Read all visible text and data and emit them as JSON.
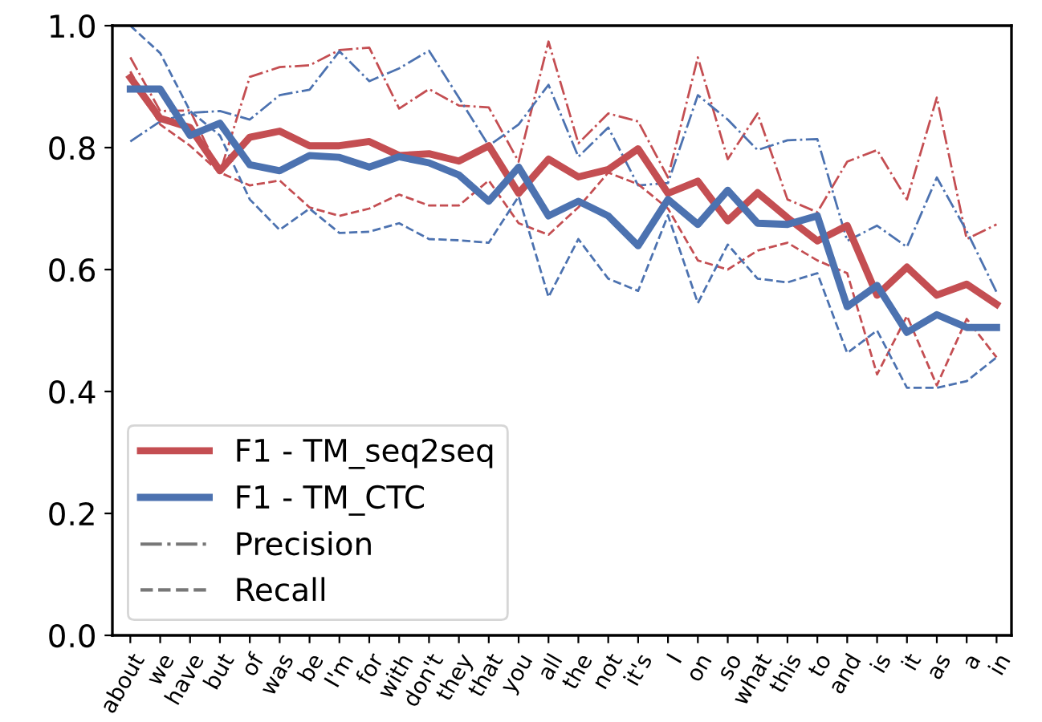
{
  "chart_data": {
    "type": "line",
    "categories": [
      "about",
      "we",
      "have",
      "but",
      "of",
      "was",
      "be",
      "I'm",
      "for",
      "with",
      "don't",
      "they",
      "that",
      "you",
      "all",
      "the",
      "not",
      "it's",
      "I",
      "on",
      "so",
      "what",
      "this",
      "to",
      "and",
      "is",
      "it",
      "as",
      "a",
      "in"
    ],
    "series": [
      {
        "name": "F1 - TM_seq2seq",
        "color": "#c44e52",
        "line_style": "solid",
        "values": [
          0.915,
          0.848,
          0.833,
          0.762,
          0.817,
          0.827,
          0.803,
          0.803,
          0.81,
          0.787,
          0.79,
          0.778,
          0.803,
          0.725,
          0.781,
          0.752,
          0.764,
          0.798,
          0.725,
          0.745,
          0.68,
          0.726,
          0.685,
          0.647,
          0.672,
          0.558,
          0.604,
          0.558,
          0.576,
          0.543
        ]
      },
      {
        "name": "F1 - TM_CTC",
        "color": "#4c72b0",
        "line_style": "solid",
        "values": [
          0.896,
          0.896,
          0.82,
          0.84,
          0.772,
          0.762,
          0.787,
          0.784,
          0.768,
          0.785,
          0.775,
          0.755,
          0.712,
          0.768,
          0.688,
          0.712,
          0.688,
          0.639,
          0.715,
          0.674,
          0.73,
          0.676,
          0.674,
          0.688,
          0.539,
          0.574,
          0.497,
          0.526,
          0.505,
          0.505
        ]
      },
      {
        "color": "#c44e52",
        "line_style": "dashdot",
        "values": [
          0.948,
          0.86,
          0.861,
          0.759,
          0.916,
          0.932,
          0.935,
          0.96,
          0.964,
          0.864,
          0.896,
          0.869,
          0.866,
          0.777,
          0.974,
          0.807,
          0.856,
          0.843,
          0.751,
          0.948,
          0.781,
          0.856,
          0.715,
          0.694,
          0.777,
          0.796,
          0.715,
          0.882,
          0.65,
          0.674
        ]
      },
      {
        "color": "#4c72b0",
        "line_style": "dashdot",
        "values": [
          0.81,
          0.843,
          0.857,
          0.86,
          0.846,
          0.886,
          0.895,
          0.958,
          0.909,
          0.93,
          0.959,
          0.882,
          0.803,
          0.838,
          0.903,
          0.785,
          0.833,
          0.738,
          0.742,
          0.886,
          0.846,
          0.796,
          0.812,
          0.814,
          0.647,
          0.672,
          0.637,
          0.751,
          0.663,
          0.563
        ]
      },
      {
        "color": "#c44e52",
        "line_style": "dashed",
        "values": [
          0.925,
          0.838,
          0.803,
          0.759,
          0.738,
          0.746,
          0.702,
          0.688,
          0.7,
          0.723,
          0.705,
          0.705,
          0.746,
          0.676,
          0.657,
          0.702,
          0.759,
          0.74,
          0.7,
          0.615,
          0.6,
          0.631,
          0.644,
          0.615,
          0.594,
          0.428,
          0.524,
          0.41,
          0.519,
          0.456
        ]
      },
      {
        "color": "#4c72b0",
        "line_style": "dashed",
        "values": [
          1.0,
          0.955,
          0.86,
          0.82,
          0.715,
          0.665,
          0.7,
          0.66,
          0.662,
          0.676,
          0.65,
          0.648,
          0.644,
          0.72,
          0.555,
          0.65,
          0.585,
          0.565,
          0.689,
          0.545,
          0.641,
          0.585,
          0.579,
          0.594,
          0.463,
          0.5,
          0.406,
          0.406,
          0.417,
          0.456
        ]
      }
    ],
    "ylim": [
      0,
      1
    ],
    "yticks": [
      {
        "value": 0,
        "label": "0.0"
      },
      {
        "value": 0.2,
        "label": "0.2"
      },
      {
        "value": 0.4,
        "label": "0.4"
      },
      {
        "value": 0.6,
        "label": "0.6"
      },
      {
        "value": 0.8,
        "label": "0.8"
      },
      {
        "value": 1,
        "label": "1.0"
      }
    ],
    "annotations": [
      "Precision",
      "Recall"
    ],
    "legend": "bottom left",
    "grid": false
  }
}
